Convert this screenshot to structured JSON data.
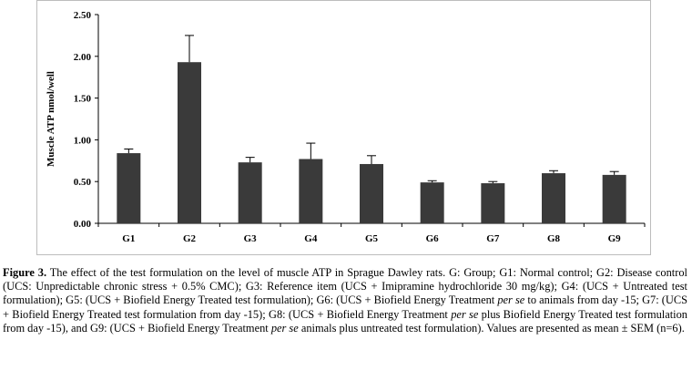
{
  "chart_data": {
    "type": "bar",
    "categories": [
      "G1",
      "G2",
      "G3",
      "G4",
      "G5",
      "G6",
      "G7",
      "G8",
      "G9"
    ],
    "values": [
      0.84,
      1.93,
      0.73,
      0.77,
      0.71,
      0.49,
      0.48,
      0.6,
      0.58
    ],
    "errors": [
      0.05,
      0.32,
      0.06,
      0.19,
      0.1,
      0.02,
      0.02,
      0.03,
      0.04
    ],
    "ylabel": "Muscle ATP nmol/well",
    "ylim": [
      0,
      2.5
    ],
    "yticks": [
      "0.00",
      "0.50",
      "1.00",
      "1.50",
      "2.00",
      "2.50"
    ],
    "grid": false,
    "bar_color": "#3a3a3a"
  },
  "caption": {
    "label": "Figure 3.",
    "segments": [
      {
        "text": " The effect of the test formulation on the level of muscle ATP in Sprague Dawley rats. G: Group; G1: Normal control; G2: Disease control (UCS: Unpredictable chronic stress + 0.5% CMC); G3: Reference item (UCS + Imipramine hydrochloride 30 mg/kg); G4: (UCS + Untreated test formulation); G5: (UCS + Biofield Energy Treated test formulation); G6: (UCS + Biofield Energy Treatment ",
        "italic": false
      },
      {
        "text": "per se",
        "italic": true
      },
      {
        "text": " to animals from day -15; G7: (UCS + Biofield Energy Treated test formulation from day -15); G8: (UCS + Biofield Energy Treatment ",
        "italic": false
      },
      {
        "text": "per se",
        "italic": true
      },
      {
        "text": " plus Biofield Energy Treated test formulation from day -15), and G9: (UCS + Biofield Energy Treatment ",
        "italic": false
      },
      {
        "text": "per se",
        "italic": true
      },
      {
        "text": " animals plus untreated test formulation). Values are presented as mean ± SEM (n=6).",
        "italic": false
      }
    ]
  }
}
